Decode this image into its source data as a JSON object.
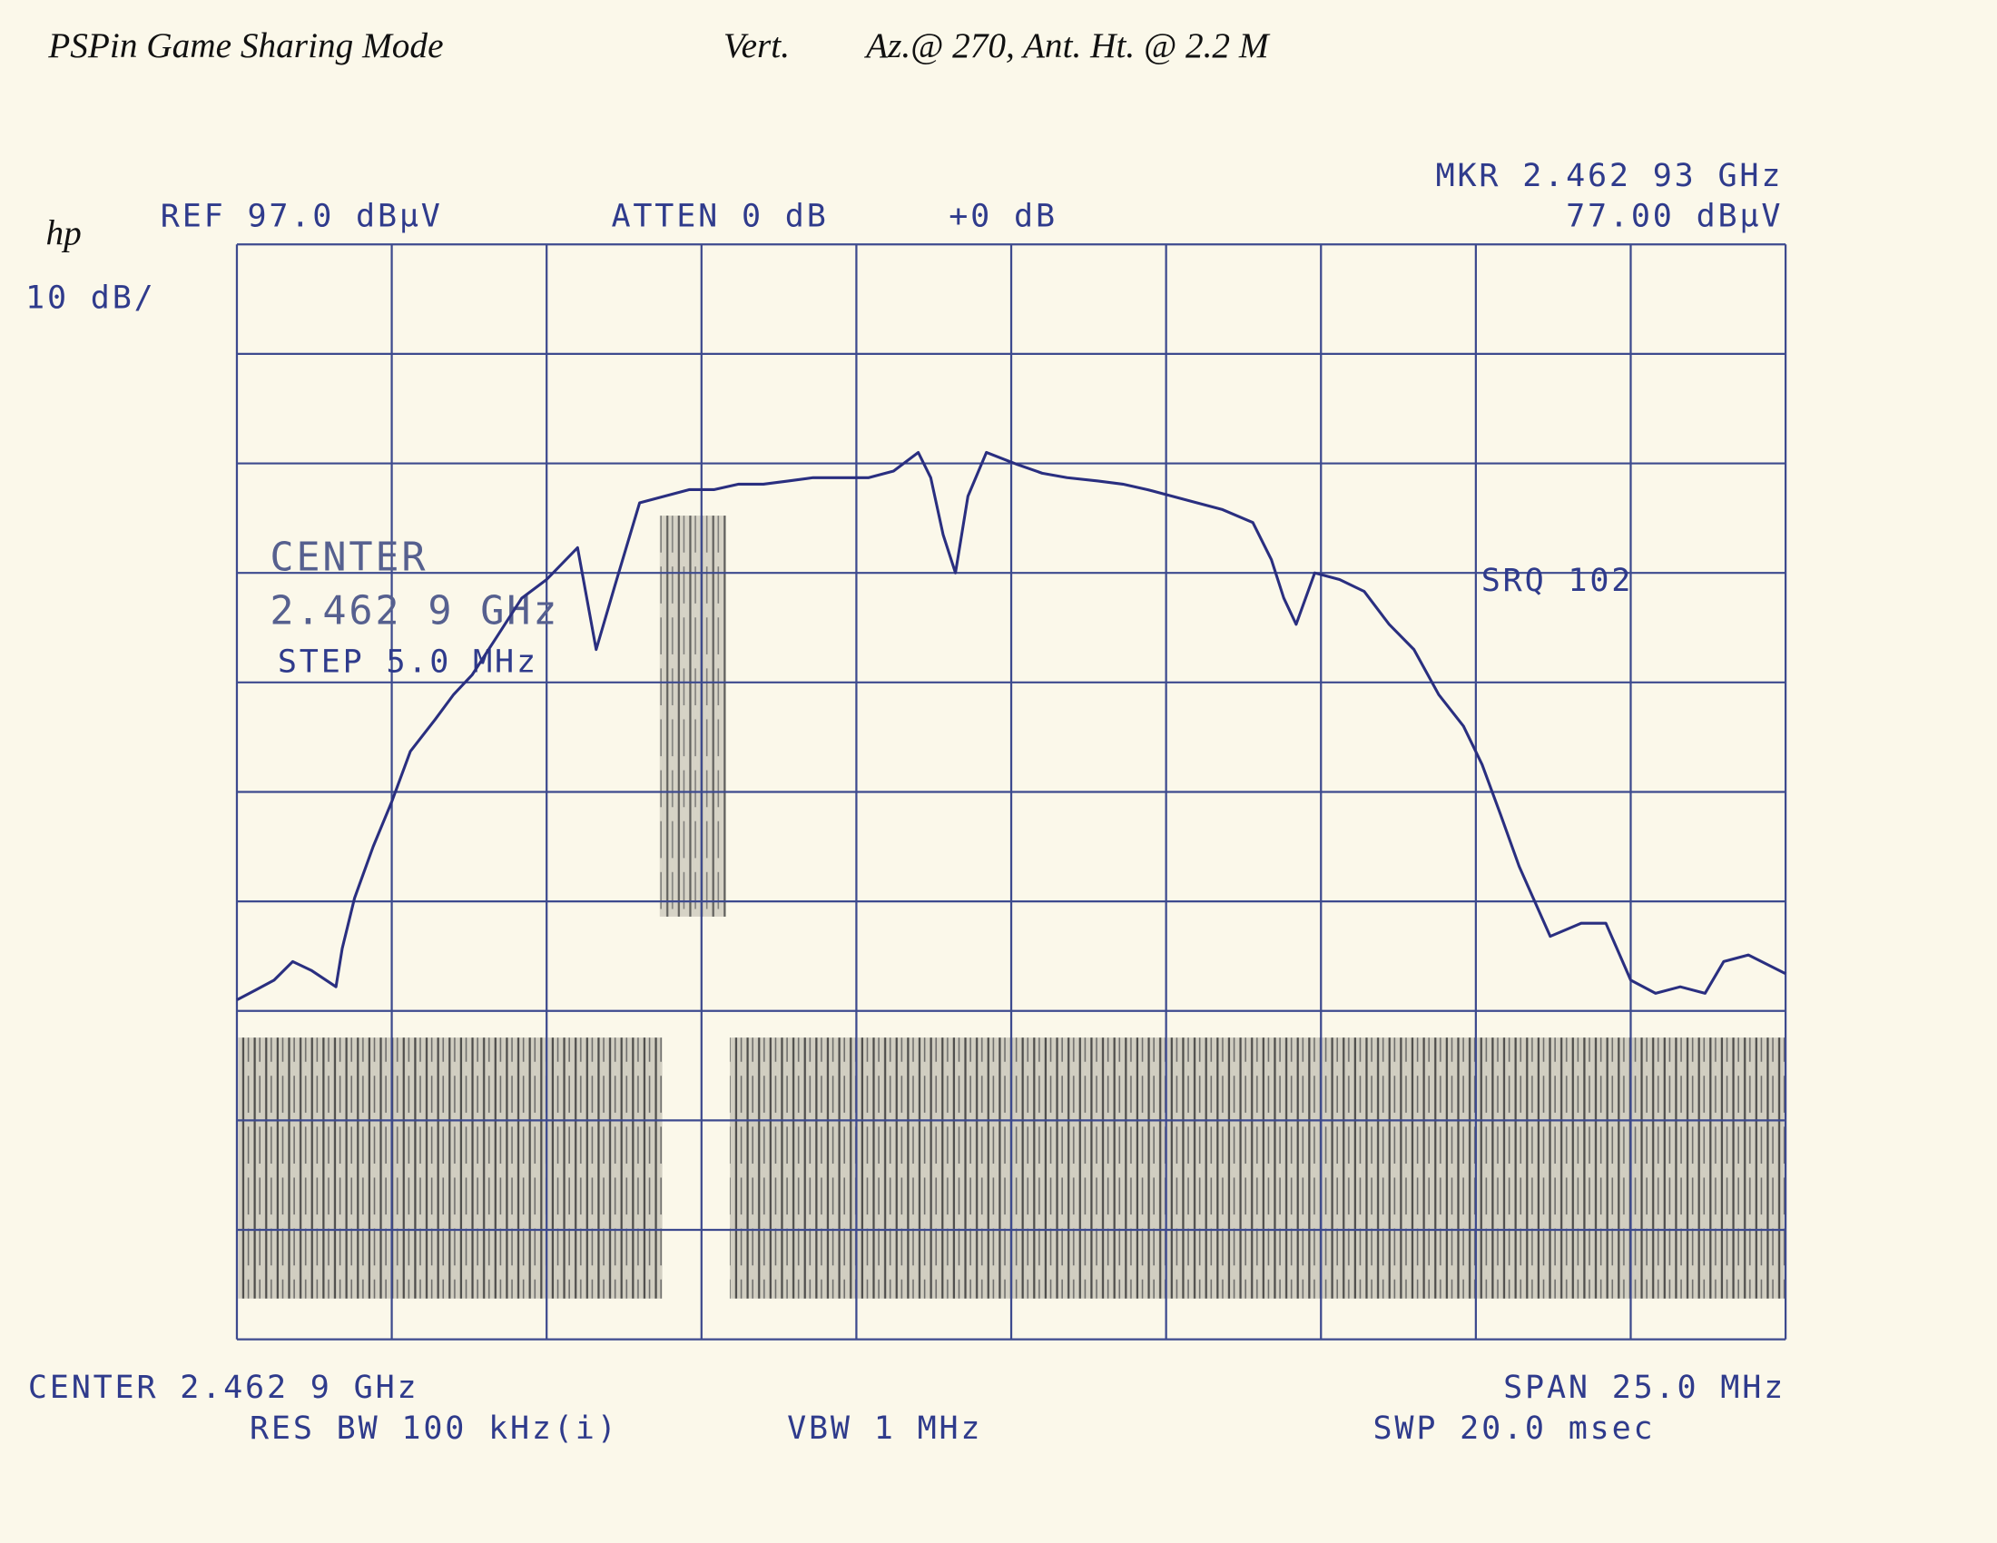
{
  "chart_data": {
    "type": "line",
    "annotations": [
      {
        "text": "PSPin Game Sharing Mode"
      },
      {
        "text": "Vert."
      },
      {
        "text": "Az.@ 270, Ant. Ht. @ 2.2 M"
      },
      {
        "text": "hp"
      },
      {
        "text": "REF 97.0 dBµV"
      },
      {
        "text": "ATTEN 0 dB"
      },
      {
        "text": "+0 dB"
      },
      {
        "text": "MKR 2.462 93 GHz"
      },
      {
        "text": "77.00 dBµV"
      },
      {
        "text": "10 dB/"
      },
      {
        "text": "CENTER"
      },
      {
        "text": "2.462 9 GHz"
      },
      {
        "text": "STEP 5.0 MHz"
      },
      {
        "text": "SRQ 102"
      },
      {
        "text": "CENTER 2.462 9 GHz"
      },
      {
        "text": "SPAN 25.0 MHz"
      },
      {
        "text": "RES BW 100 kHz(i)"
      },
      {
        "text": "VBW 1 MHz"
      },
      {
        "text": "SWP 20.0 msec"
      }
    ],
    "x": [
      2.4504,
      2.4507,
      2.451,
      2.4513,
      2.4516,
      2.452,
      2.4521,
      2.4523,
      2.4526,
      2.4529,
      2.4532,
      2.4536,
      2.4539,
      2.4542,
      2.4546,
      2.455,
      2.4554,
      2.4559,
      2.4562,
      2.4565,
      2.4569,
      2.4573,
      2.4577,
      2.4581,
      2.4585,
      2.4589,
      2.4593,
      2.4597,
      2.4601,
      2.4606,
      2.461,
      2.4614,
      2.4616,
      2.4618,
      2.462,
      2.4622,
      2.4625,
      2.463,
      2.4634,
      2.4638,
      2.4643,
      2.4647,
      2.4651,
      2.4655,
      2.4659,
      2.4663,
      2.4668,
      2.4671,
      2.4673,
      2.4675,
      2.4678,
      2.4682,
      2.4686,
      2.469,
      2.4694,
      2.4698,
      2.4702,
      2.4705,
      2.4708,
      2.4711,
      2.4716,
      2.4721,
      2.4725,
      2.4729,
      2.4733,
      2.4737,
      2.4741,
      2.4744,
      2.4748,
      2.4754
    ],
    "values": [
      28.0,
      28.9,
      29.8,
      31.5,
      30.7,
      29.2,
      32.7,
      37.3,
      42.0,
      46.1,
      50.7,
      53.6,
      55.9,
      57.7,
      61.2,
      64.7,
      66.4,
      69.3,
      60.0,
      65.8,
      73.4,
      74.0,
      74.6,
      74.6,
      75.1,
      75.1,
      75.4,
      75.7,
      75.7,
      75.7,
      76.3,
      78.0,
      75.7,
      70.5,
      67.0,
      74.0,
      78.0,
      76.9,
      76.1,
      75.7,
      75.4,
      75.1,
      74.6,
      74.0,
      73.4,
      72.8,
      71.6,
      68.2,
      64.7,
      62.3,
      67.0,
      66.4,
      65.3,
      62.3,
      60.0,
      55.9,
      53.0,
      49.5,
      44.9,
      40.2,
      33.8,
      35.0,
      35.0,
      29.8,
      28.6,
      29.2,
      28.6,
      31.5,
      32.1,
      30.4
    ],
    "xlim": [
      2.4504,
      2.4754
    ],
    "ylim": [
      -3,
      97
    ],
    "color": "#2a2f80"
  }
}
